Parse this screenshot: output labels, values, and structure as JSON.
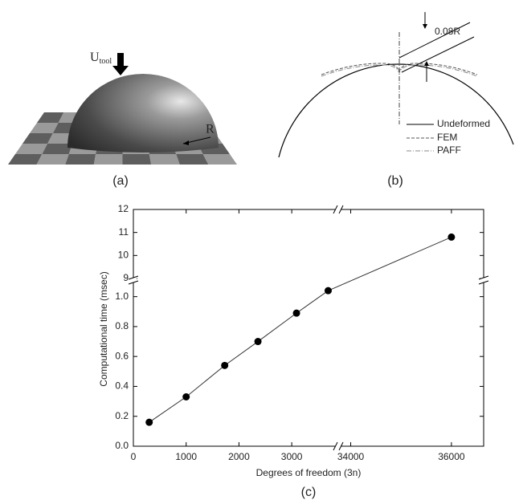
{
  "panels": {
    "a": {
      "tool_label": "U",
      "tool_subscript": "tool",
      "radius_label": "R",
      "caption": "(a)"
    },
    "b": {
      "gap_label": "0.08R",
      "legend": [
        "Undeformed",
        "FEM",
        "PAFF"
      ],
      "caption": "(b)"
    }
  },
  "chart_data": {
    "type": "scatter",
    "caption": "(c)",
    "xlabel": "Degrees of freedom (3n)",
    "ylabel": "Computational time (msec)",
    "x": [
      300,
      1000,
      1730,
      2360,
      3090,
      3690,
      36000
    ],
    "values": [
      0.16,
      0.33,
      0.54,
      0.7,
      0.89,
      1.04,
      10.8
    ],
    "color": "#000000",
    "xlim": [
      [
        0,
        3850
      ],
      [
        33800,
        36640
      ]
    ],
    "ylim": [
      [
        0,
        1.1
      ],
      [
        9,
        12
      ]
    ],
    "xticks": [
      0,
      1000,
      2000,
      3000,
      34000,
      36000
    ],
    "yticks": [
      {
        "value": 0,
        "label": "0.0"
      },
      0.2,
      0.4,
      0.6,
      0.8,
      {
        "value": 1,
        "label": "1.0"
      },
      9,
      10,
      11,
      12
    ]
  }
}
